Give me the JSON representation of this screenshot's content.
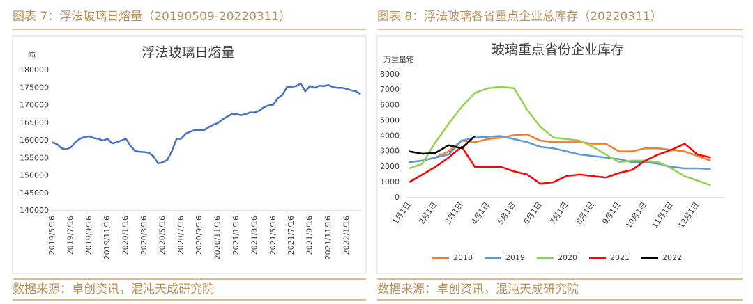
{
  "captions": [
    "图表 7：浮法玻璃日熔量（20190509-20220311）",
    "图表 8：浮法玻璃各省重点企业总库存（20220311）"
  ],
  "sources": [
    "数据来源：卓创资讯，混沌天成研究院",
    "数据来源：卓创资讯，混沌天成研究院"
  ],
  "chart_data": [
    {
      "type": "line",
      "title": "浮法玻璃日熔量",
      "y_label": "吨",
      "categories": [
        "2019/5/16",
        null,
        null,
        null,
        "2019/7/16",
        null,
        null,
        null,
        "2019/9/16",
        null,
        null,
        null,
        "2019/11/16",
        null,
        null,
        null,
        "2020/1/16",
        null,
        null,
        null,
        "2020/3/16",
        null,
        null,
        null,
        "2020/5/16",
        null,
        null,
        null,
        "2020/7/16",
        null,
        null,
        null,
        "2020/9/16",
        null,
        null,
        null,
        "2020/11/16",
        null,
        null,
        null,
        "2021/1/16",
        null,
        null,
        null,
        "2021/3/16",
        null,
        null,
        null,
        "2021/5/16",
        null,
        null,
        null,
        "2021/7/16",
        null,
        null,
        null,
        "2021/9/16",
        null,
        null,
        null,
        "2021/11/16",
        null,
        null,
        null,
        "2022/1/16",
        null,
        null,
        null
      ],
      "series": [
        {
          "name": "日熔量",
          "color": "#4472c4",
          "values": [
            159500,
            159000,
            157800,
            157500,
            158000,
            159500,
            160500,
            161000,
            161200,
            160700,
            160500,
            160000,
            160500,
            159200,
            159500,
            160000,
            160500,
            158500,
            157000,
            156800,
            156700,
            156500,
            155500,
            153500,
            153800,
            154500,
            157000,
            160500,
            160500,
            162000,
            162500,
            163000,
            163000,
            163000,
            163800,
            164500,
            165000,
            166000,
            166800,
            167500,
            167500,
            167200,
            167500,
            168000,
            168000,
            168500,
            169500,
            170000,
            170200,
            172000,
            173000,
            175200,
            175300,
            175500,
            176200,
            174000,
            175500,
            175000,
            175600,
            175500,
            175800,
            175200,
            175000,
            175000,
            174700,
            174300,
            174000,
            173200
          ]
        }
      ],
      "ylim": [
        140000,
        180000
      ],
      "yticks": [
        140000,
        145000,
        150000,
        155000,
        160000,
        165000,
        170000,
        175000,
        180000
      ],
      "grid": false,
      "legend": "none"
    },
    {
      "type": "line",
      "title": "玻璃重点省份企业库存",
      "y_label": "万重量箱",
      "categories": [
        "1月1日",
        null,
        "2月1日",
        null,
        "3月1日",
        null,
        "4月1日",
        null,
        "5月1日",
        null,
        "6月1日",
        null,
        "7月1日",
        null,
        "8月1日",
        null,
        "9月1日",
        null,
        "10月1日",
        null,
        "11月1日",
        null,
        "12月1日",
        null
      ],
      "series": [
        {
          "name": "2018",
          "color": "#ed7d31",
          "values": [
            2300,
            2400,
            2600,
            3000,
            3700,
            3600,
            3800,
            3900,
            4050,
            4100,
            3700,
            3600,
            3600,
            3600,
            3500,
            3500,
            3000,
            3000,
            3200,
            3200,
            3100,
            3000,
            2700,
            2400
          ]
        },
        {
          "name": "2019",
          "color": "#5b9bd5",
          "values": [
            2300,
            2400,
            2600,
            2800,
            3700,
            3900,
            3950,
            4000,
            3800,
            3600,
            3300,
            3200,
            3000,
            2800,
            2700,
            2600,
            2500,
            2300,
            2300,
            2200,
            2000,
            1900,
            1900,
            1850
          ]
        },
        {
          "name": "2020",
          "color": "#92d050",
          "values": [
            1900,
            2200,
            3600,
            4800,
            5900,
            6800,
            7100,
            7200,
            7100,
            5700,
            4600,
            3900,
            3800,
            3700,
            3300,
            2800,
            2300,
            2400,
            2400,
            2300,
            1900,
            1400,
            1100,
            800
          ]
        },
        {
          "name": "2021",
          "color": "#ff0000",
          "values": [
            1000,
            1500,
            2000,
            2600,
            3300,
            2000,
            2000,
            2000,
            1700,
            1500,
            900,
            1000,
            1400,
            1500,
            1400,
            1300,
            1600,
            1800,
            2400,
            2800,
            3100,
            3500,
            2800,
            2600
          ]
        },
        {
          "name": "2022",
          "color": "#000000",
          "values": [
            3000,
            2850,
            2900,
            3400,
            3200,
            4000,
            null,
            null,
            null,
            null,
            null,
            null,
            null,
            null,
            null,
            null,
            null,
            null,
            null,
            null,
            null,
            null,
            null,
            null
          ]
        }
      ],
      "ylim": [
        0,
        8000
      ],
      "yticks": [
        0,
        1000,
        2000,
        3000,
        4000,
        5000,
        6000,
        7000,
        8000
      ],
      "grid": false,
      "legend": "bottom"
    }
  ]
}
